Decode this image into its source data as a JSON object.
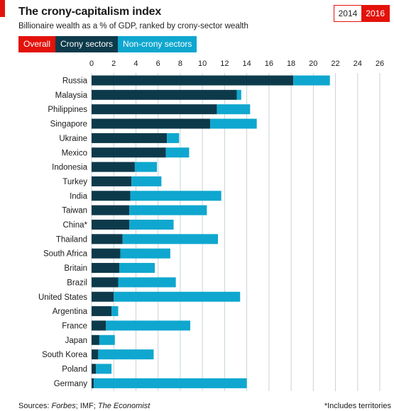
{
  "header": {
    "title": "The crony-capitalism index",
    "subtitle": "Billionaire wealth as a % of GDP, ranked by crony-sector wealth",
    "years": [
      "2014",
      "2016"
    ],
    "active_year": "2016"
  },
  "filters": {
    "overall": "Overall",
    "crony": "Crony sectors",
    "noncrony": "Non-crony sectors"
  },
  "colors": {
    "accent": "#e3120b",
    "crony": "#0d3a4b",
    "noncrony": "#0fa7cf",
    "grid": "#c9d3d8"
  },
  "chart_data": {
    "type": "bar",
    "orientation": "horizontal",
    "stacked": true,
    "title": "The crony-capitalism index",
    "subtitle": "Billionaire wealth as a % of GDP, ranked by crony-sector wealth",
    "categories": [
      "Russia",
      "Malaysia",
      "Philippines",
      "Singapore",
      "Ukraine",
      "Mexico",
      "Indonesia",
      "Turkey",
      "India",
      "Taiwan",
      "China*",
      "Thailand",
      "South Africa",
      "Britain",
      "Brazil",
      "United States",
      "Argentina",
      "France",
      "Japan",
      "South Korea",
      "Poland",
      "Germany"
    ],
    "series": [
      {
        "name": "Crony sectors",
        "values": [
          18.2,
          13.1,
          11.3,
          10.7,
          6.8,
          6.7,
          3.9,
          3.6,
          3.5,
          3.4,
          3.4,
          2.8,
          2.6,
          2.5,
          2.4,
          2.0,
          1.8,
          1.3,
          0.7,
          0.6,
          0.4,
          0.2
        ]
      },
      {
        "name": "Non-crony sectors",
        "values": [
          3.3,
          0.4,
          3.0,
          4.2,
          1.1,
          2.1,
          2.0,
          2.7,
          8.2,
          7.0,
          4.0,
          8.6,
          4.5,
          3.2,
          5.2,
          11.4,
          0.6,
          7.6,
          1.4,
          5.0,
          1.4,
          13.8
        ]
      }
    ],
    "xlim": [
      0,
      26
    ],
    "xticks": [
      "0",
      "2",
      "4",
      "6",
      "8",
      "10",
      "12",
      "14",
      "16",
      "18",
      "20",
      "22",
      "24",
      "26"
    ],
    "grid": true,
    "xlabel": "",
    "ylabel": ""
  },
  "footer": {
    "sources_label": "Sources: ",
    "source_1": "Forbes",
    "source_sep_1": "; IMF; ",
    "source_2": "The Economist",
    "footnote": "*Includes territories"
  }
}
